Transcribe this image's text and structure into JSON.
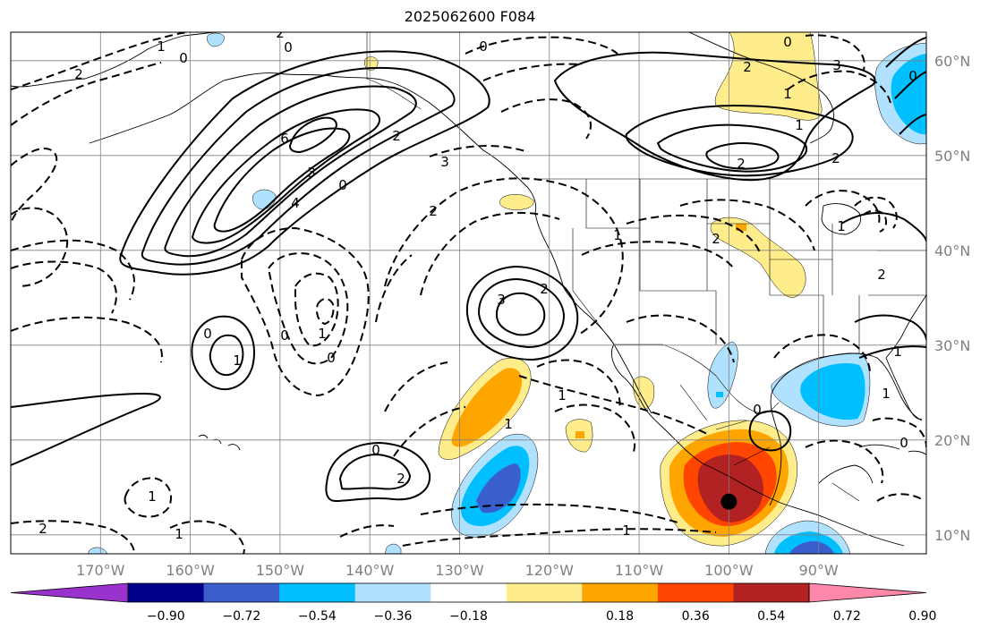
{
  "title": "2025062600 F084",
  "map": {
    "projection": "PlateCarree",
    "lon_range": [
      -180,
      -78
    ],
    "lat_range": [
      8,
      63
    ],
    "lon_ticks": [
      {
        "value": -170,
        "label": "170°W"
      },
      {
        "value": -160,
        "label": "160°W"
      },
      {
        "value": -150,
        "label": "150°W"
      },
      {
        "value": -140,
        "label": "140°W"
      },
      {
        "value": -130,
        "label": "130°W"
      },
      {
        "value": -120,
        "label": "120°W"
      },
      {
        "value": -110,
        "label": "110°W"
      },
      {
        "value": -100,
        "label": "100°W"
      },
      {
        "value": -90,
        "label": "90°W"
      }
    ],
    "lat_ticks": [
      {
        "value": 60,
        "label": "60°N"
      },
      {
        "value": 50,
        "label": "50°N"
      },
      {
        "value": 40,
        "label": "40°N"
      },
      {
        "value": 30,
        "label": "30°N"
      },
      {
        "value": 20,
        "label": "20°N"
      },
      {
        "value": 10,
        "label": "10°N"
      }
    ],
    "gridlines": true,
    "marker": {
      "lon": -100,
      "lat": 13.5,
      "color": "#000000"
    }
  },
  "colorbar": {
    "colors": [
      "#9a32cd",
      "#00008b",
      "#3a5fcd",
      "#00bfff",
      "#b0e2ff",
      "#ffffff",
      "#ffec8b",
      "#ffa500",
      "#ff4500",
      "#b22222",
      "#ff88aa"
    ],
    "tick_labels": [
      "−0.90",
      "−0.72",
      "−0.54",
      "−0.36",
      "−0.18",
      "0.18",
      "0.36",
      "0.54",
      "0.72",
      "0.90"
    ],
    "extend": "both"
  },
  "contour_labels": [
    "1",
    "0",
    "2",
    "0",
    "0",
    "2",
    "6",
    "3",
    "4",
    "0",
    "2",
    "3",
    "2",
    "0",
    "1",
    "0",
    "3",
    "2",
    "1",
    "2",
    "2",
    "1",
    "1",
    "2",
    "0",
    "3",
    "2",
    "0",
    "1",
    "2",
    "1",
    "1",
    "0",
    "1",
    "1",
    "0",
    "1",
    "2",
    "1",
    "1",
    "0",
    "2",
    "1",
    "0"
  ]
}
